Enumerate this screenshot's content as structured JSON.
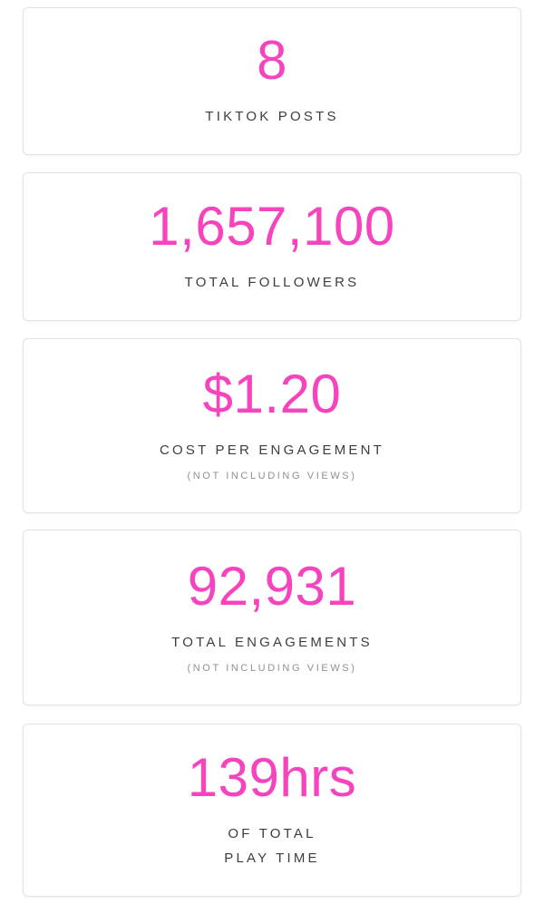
{
  "theme": {
    "accent_pink": "#f643be",
    "label_color": "#3b3e40",
    "sublabel_color": "#909090",
    "card_border": "#e3e3e3",
    "card_background": "#ffffff",
    "page_background": "#ffffff"
  },
  "cards": [
    {
      "value": "8",
      "label": "TIKTOK POSTS"
    },
    {
      "value": "1,657,100",
      "label": "TOTAL FOLLOWERS"
    },
    {
      "value": "$1.20",
      "label": "COST PER ENGAGEMENT",
      "sublabel": "(NOT INCLUDING VIEWS)"
    },
    {
      "value": "92,931",
      "label": "TOTAL ENGAGEMENTS",
      "sublabel": "(NOT INCLUDING VIEWS)"
    },
    {
      "value": "139hrs",
      "label": "OF TOTAL\nPLAY TIME"
    }
  ]
}
